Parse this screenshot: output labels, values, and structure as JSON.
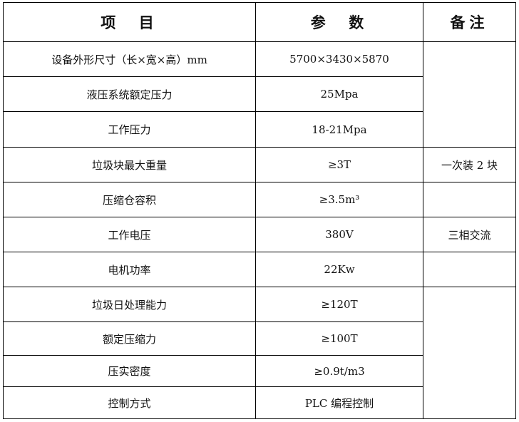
{
  "headers": {
    "item": "项  目",
    "param": "参  数",
    "note": "备注"
  },
  "rows": [
    {
      "item": "设备外形尺寸（长×宽×高）mm",
      "param": "5700×3430×5870"
    },
    {
      "item": "液压系统额定压力",
      "param": "25Mpa"
    },
    {
      "item": "工作压力",
      "param": "18-21Mpa"
    },
    {
      "item": "垃圾块最大重量",
      "param": "≥3T",
      "note": "一次装 2 块"
    },
    {
      "item": "压缩仓容积",
      "param": "≥3.5m³"
    },
    {
      "item": "工作电压",
      "param": "380V",
      "note": "三相交流"
    },
    {
      "item": "电机功率",
      "param": "22Kw"
    },
    {
      "item": "垃圾日处理能力",
      "param": "≥120T"
    },
    {
      "item": "额定压缩力",
      "param": "≥100T"
    },
    {
      "item": "压实密度",
      "param": "≥0.9t/m3"
    },
    {
      "item": "控制方式",
      "param": "PLC 编程控制"
    }
  ]
}
